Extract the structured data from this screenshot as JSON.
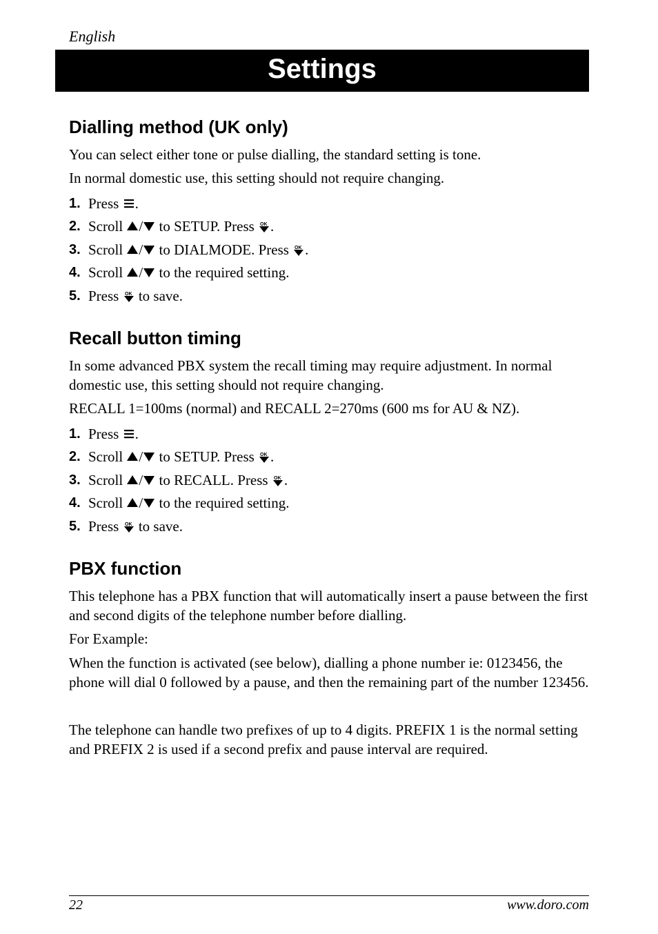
{
  "header": {
    "language": "English"
  },
  "banner": {
    "title": "Settings"
  },
  "sections": [
    {
      "title": "Dialling method (UK only)",
      "intro": [
        "You can select either tone or pulse dialling, the standard setting is tone.",
        "In normal domestic use, this setting should not require changing."
      ],
      "steps": [
        [
          {
            "t": "Press "
          },
          {
            "icon": "menu-icon"
          },
          {
            "t": "."
          }
        ],
        [
          {
            "t": "Scroll "
          },
          {
            "icon": "up-icon"
          },
          {
            "t": "/"
          },
          {
            "icon": "down-icon"
          },
          {
            "t": " to SETUP. Press "
          },
          {
            "icon": "ok-icon"
          },
          {
            "t": "."
          }
        ],
        [
          {
            "t": "Scroll "
          },
          {
            "icon": "up-icon"
          },
          {
            "t": "/"
          },
          {
            "icon": "down-icon"
          },
          {
            "t": " to DIALMODE. Press "
          },
          {
            "icon": "ok-icon"
          },
          {
            "t": "."
          }
        ],
        [
          {
            "t": "Scroll "
          },
          {
            "icon": "up-icon"
          },
          {
            "t": "/"
          },
          {
            "icon": "down-icon"
          },
          {
            "t": " to the required setting."
          }
        ],
        [
          {
            "t": "Press "
          },
          {
            "icon": "ok-icon"
          },
          {
            "t": " to save."
          }
        ]
      ]
    },
    {
      "title": "Recall button timing",
      "intro": [
        "In some advanced PBX system the recall timing may require adjustment. In normal domestic use, this setting should not require changing.",
        "RECALL 1=100ms (normal) and RECALL 2=270ms (600 ms for AU & NZ)."
      ],
      "steps": [
        [
          {
            "t": "Press "
          },
          {
            "icon": "menu-icon"
          },
          {
            "t": "."
          }
        ],
        [
          {
            "t": "Scroll "
          },
          {
            "icon": "up-icon"
          },
          {
            "t": "/"
          },
          {
            "icon": "down-icon"
          },
          {
            "t": " to SETUP. Press "
          },
          {
            "icon": "ok-icon"
          },
          {
            "t": "."
          }
        ],
        [
          {
            "t": "Scroll "
          },
          {
            "icon": "up-icon"
          },
          {
            "t": "/"
          },
          {
            "icon": "down-icon"
          },
          {
            "t": " to RECALL. Press "
          },
          {
            "icon": "ok-icon"
          },
          {
            "t": "."
          }
        ],
        [
          {
            "t": "Scroll "
          },
          {
            "icon": "up-icon"
          },
          {
            "t": "/"
          },
          {
            "icon": "down-icon"
          },
          {
            "t": " to the required setting."
          }
        ],
        [
          {
            "t": "Press "
          },
          {
            "icon": "ok-icon"
          },
          {
            "t": " to save."
          }
        ]
      ]
    },
    {
      "title": "PBX function",
      "intro": [
        "This telephone has a PBX function that will automatically insert a pause between the first and second digits of the telephone number before dialling.",
        "For Example:",
        "When the function is activated (see below), dialling a phone number ie: 0123456, the phone will dial 0 followed by a pause, and then the remaining part of the number 123456.",
        "",
        "The telephone can handle two prefixes of up to 4 digits. PREFIX 1 is the normal setting and PREFIX 2 is used if a second prefix and pause interval are required."
      ],
      "steps": []
    }
  ],
  "footer": {
    "page": "22",
    "url": "www.doro.com"
  },
  "icons": {
    "menu-icon": "menu",
    "up-icon": "up",
    "down-icon": "down",
    "ok-icon": "ok"
  },
  "style": {
    "bg": "#ffffff",
    "text": "#000000",
    "banner_bg": "#000000",
    "banner_fg": "#ffffff"
  }
}
